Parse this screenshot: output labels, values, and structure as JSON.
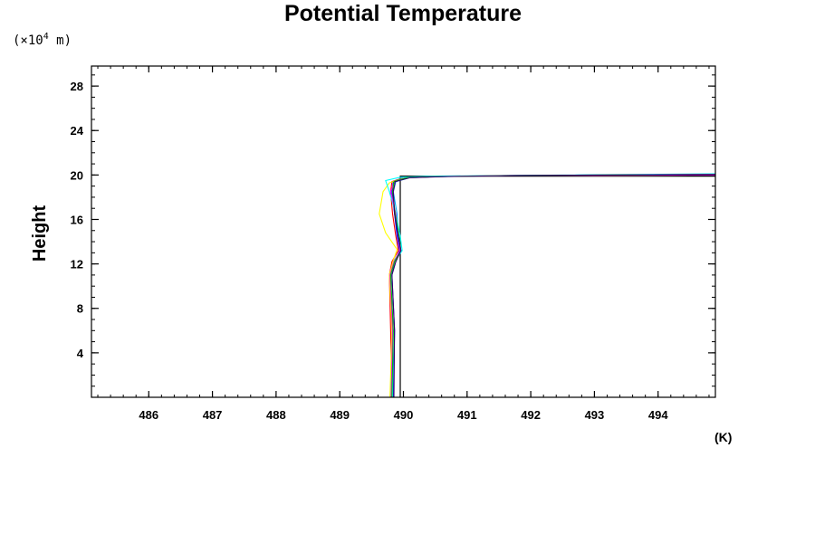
{
  "chart_data": {
    "type": "line",
    "title": "Potential Temperature",
    "ylabel": "Height",
    "y_unit_prefix": "(×10",
    "y_unit_exp": "4",
    "y_unit_suffix": " m)",
    "x_unit": "(K)",
    "xlim": [
      485.1,
      494.9
    ],
    "ylim": [
      0,
      29.8
    ],
    "x_ticks": [
      486,
      487,
      488,
      489,
      490,
      491,
      492,
      493,
      494
    ],
    "y_ticks": [
      4,
      8,
      12,
      16,
      20,
      24,
      28
    ],
    "x_minor_step": 0.2,
    "y_minor_step": 1,
    "grid": false,
    "series": [
      {
        "color": "#000000",
        "points": [
          [
            489.95,
            0
          ],
          [
            489.95,
            19.9
          ],
          [
            494.9,
            19.9
          ]
        ]
      },
      {
        "color": "#ff0000",
        "points": [
          [
            489.82,
            0
          ],
          [
            489.8,
            6
          ],
          [
            489.78,
            11
          ],
          [
            489.82,
            12.2
          ],
          [
            489.92,
            13.2
          ],
          [
            489.88,
            14.5
          ],
          [
            489.83,
            16.5
          ],
          [
            489.8,
            18.5
          ],
          [
            489.82,
            19.4
          ],
          [
            490.0,
            19.75
          ],
          [
            490.4,
            19.85
          ],
          [
            491.5,
            19.95
          ],
          [
            494.9,
            20.0
          ]
        ]
      },
      {
        "color": "#00aaff",
        "points": [
          [
            489.8,
            0
          ],
          [
            489.82,
            6
          ],
          [
            489.8,
            11
          ],
          [
            489.84,
            12.2
          ],
          [
            489.96,
            13.2
          ],
          [
            489.92,
            14.5
          ],
          [
            489.9,
            16.5
          ],
          [
            489.84,
            18.5
          ],
          [
            489.88,
            19.4
          ],
          [
            490.1,
            19.75
          ],
          [
            490.5,
            19.85
          ],
          [
            491.6,
            19.95
          ],
          [
            494.9,
            20.0
          ]
        ]
      },
      {
        "color": "#0000ff",
        "points": [
          [
            489.84,
            0
          ],
          [
            489.86,
            6
          ],
          [
            489.82,
            11
          ],
          [
            489.86,
            12.2
          ],
          [
            489.94,
            13.2
          ],
          [
            489.9,
            14.5
          ],
          [
            489.86,
            16.5
          ],
          [
            489.82,
            18.5
          ],
          [
            489.84,
            19.4
          ],
          [
            490.0,
            19.75
          ],
          [
            490.45,
            19.85
          ],
          [
            491.5,
            19.95
          ],
          [
            494.9,
            20.05
          ]
        ]
      },
      {
        "color": "#ffff00",
        "points": [
          [
            489.79,
            0
          ],
          [
            489.82,
            6
          ],
          [
            489.78,
            11
          ],
          [
            489.84,
            12.3
          ],
          [
            489.9,
            13.3
          ],
          [
            489.72,
            14.8
          ],
          [
            489.62,
            16.5
          ],
          [
            489.68,
            18.5
          ],
          [
            489.78,
            19.3
          ],
          [
            490.0,
            19.7
          ],
          [
            490.4,
            19.85
          ],
          [
            491.5,
            19.95
          ],
          [
            494.9,
            20.0
          ]
        ]
      },
      {
        "color": "#00ffff",
        "points": [
          [
            489.83,
            0
          ],
          [
            489.84,
            6
          ],
          [
            489.8,
            11
          ],
          [
            489.86,
            12.2
          ],
          [
            489.98,
            13.2
          ],
          [
            489.95,
            14.5
          ],
          [
            489.88,
            16.5
          ],
          [
            489.78,
            18.5
          ],
          [
            489.72,
            19.5
          ],
          [
            489.95,
            19.8
          ],
          [
            490.5,
            19.9
          ],
          [
            491.5,
            19.95
          ],
          [
            494.9,
            20.1
          ]
        ]
      },
      {
        "color": "#ff00ff",
        "points": [
          [
            489.81,
            0
          ],
          [
            489.83,
            6
          ],
          [
            489.79,
            11
          ],
          [
            489.85,
            12.2
          ],
          [
            489.95,
            13.2
          ],
          [
            489.92,
            14.5
          ],
          [
            489.88,
            16.5
          ],
          [
            489.8,
            18.5
          ],
          [
            489.86,
            19.4
          ],
          [
            490.05,
            19.75
          ],
          [
            490.5,
            19.85
          ],
          [
            491.6,
            19.95
          ],
          [
            494.9,
            20.0
          ]
        ]
      },
      {
        "color": "#00c000",
        "points": [
          [
            489.82,
            0
          ],
          [
            489.84,
            6
          ],
          [
            489.8,
            11
          ],
          [
            489.86,
            12.2
          ],
          [
            489.96,
            13.2
          ],
          [
            489.93,
            14.5
          ],
          [
            489.87,
            16.5
          ],
          [
            489.83,
            18.5
          ],
          [
            489.85,
            19.4
          ],
          [
            490.05,
            19.75
          ],
          [
            490.5,
            19.85
          ],
          [
            491.6,
            19.95
          ],
          [
            494.9,
            20.05
          ]
        ]
      },
      {
        "color": "#330066",
        "points": [
          [
            489.85,
            0
          ],
          [
            489.86,
            6
          ],
          [
            489.82,
            11
          ],
          [
            489.88,
            12.2
          ],
          [
            489.96,
            13.2
          ],
          [
            489.92,
            14.5
          ],
          [
            489.86,
            16.5
          ],
          [
            489.84,
            18.5
          ],
          [
            489.87,
            19.4
          ],
          [
            490.1,
            19.75
          ],
          [
            490.6,
            19.85
          ],
          [
            491.7,
            19.95
          ],
          [
            494.9,
            20.05
          ]
        ]
      }
    ]
  }
}
